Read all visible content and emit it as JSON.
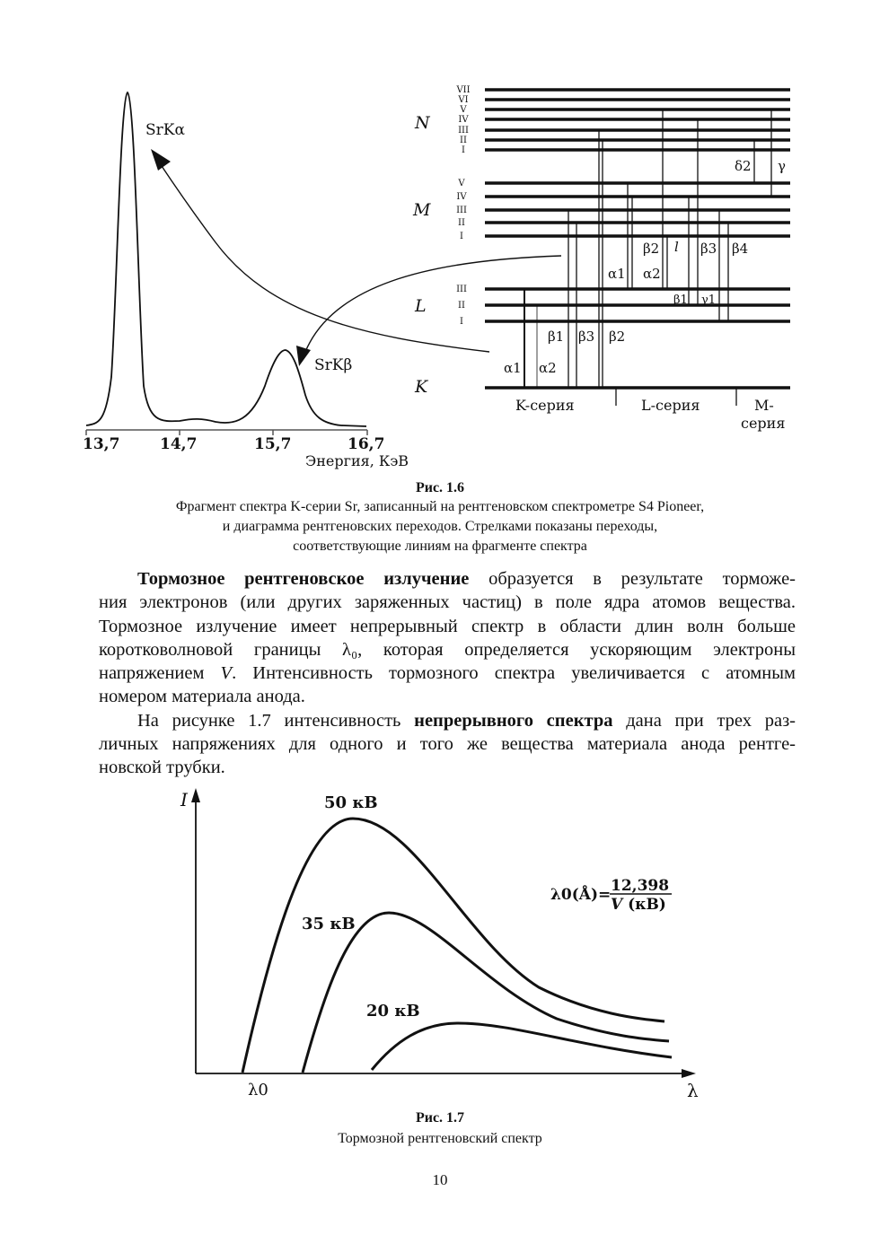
{
  "figure_1_6": {
    "spectrum": {
      "peak_ka_label": "SrKα",
      "peak_kb_label": "SrKβ",
      "x_ticks": [
        "13,7",
        "14,7",
        "15,7",
        "16,7"
      ],
      "x_label": "Энергия, КэВ"
    },
    "diagram": {
      "shells": [
        "N",
        "M",
        "L",
        "K"
      ],
      "n_sublevels": [
        "VII",
        "VI",
        "V",
        "IV",
        "III",
        "II",
        "I"
      ],
      "m_sublevels": [
        "V",
        "IV",
        "III",
        "II",
        "I"
      ],
      "l_sublevels": [
        "III",
        "II",
        "I"
      ],
      "k_lines": [
        "α1",
        "α2",
        "β1",
        "β3",
        "β2"
      ],
      "l_lines": [
        "α1",
        "α2",
        "β2",
        "l",
        "β1",
        "γ1",
        "β3",
        "β4"
      ],
      "m_lines": [
        "δ2",
        "γ"
      ],
      "series": [
        "K-серия",
        "L-серия",
        "M-",
        "серия"
      ]
    },
    "caption_title": "Рис. 1.6",
    "caption_lines": [
      "Фрагмент спектра K-серии Sr, записанный на рентгеновском спектрометре S4 Pioneer,",
      "и диаграмма рентгеновских переходов. Стрелками показаны переходы,",
      "соответствующие линиям на фрагменте спектра"
    ]
  },
  "paragraphs": [
    [
      [
        {
          "t": "Тормозное рентгеновское излучение",
          "b": true
        },
        {
          "t": " образуется в результате торможе-"
        }
      ],
      [
        {
          "t": "ния электронов (или других заряженных частиц) в поле ядра атомов вещества."
        }
      ],
      [
        {
          "t": "Тормозное излучение имеет непрерывный спектр в области длин волн больше"
        }
      ],
      [
        {
          "t": "коротковолновой границы λ₀, которая определяется ускоряющим электроны"
        }
      ],
      [
        {
          "t": "напряжением "
        },
        {
          "t": "V",
          "i": true
        },
        {
          "t": ". Интенсивность тормозного спектра увеличивается с атомным"
        }
      ],
      [
        {
          "t": "номером материала анода."
        }
      ]
    ],
    [
      [
        {
          "t": "На рисунке 1.7 интенсивность "
        },
        {
          "t": "непрерывного спектра",
          "b": true
        },
        {
          "t": " дана при трех раз-"
        }
      ],
      [
        {
          "t": "личных напряжениях для одного и того же вещества материала анода рентге-"
        }
      ],
      [
        {
          "t": "новской трубки."
        }
      ]
    ]
  ],
  "figure_1_7": {
    "y_axis_label": "I",
    "x_axis_label": "λ",
    "lambda0_label": "λ0",
    "curve_labels": [
      "50 кВ",
      "35 кВ",
      "20 кВ"
    ],
    "formula": {
      "lhs": "λ0(Å)=",
      "numerator": "12,398",
      "denominator_var": "V",
      "denominator_unit": " (кВ)"
    },
    "caption_title": "Рис. 1.7",
    "caption_line": "Тормозной рентгеновский спектр"
  },
  "page_number": "10"
}
